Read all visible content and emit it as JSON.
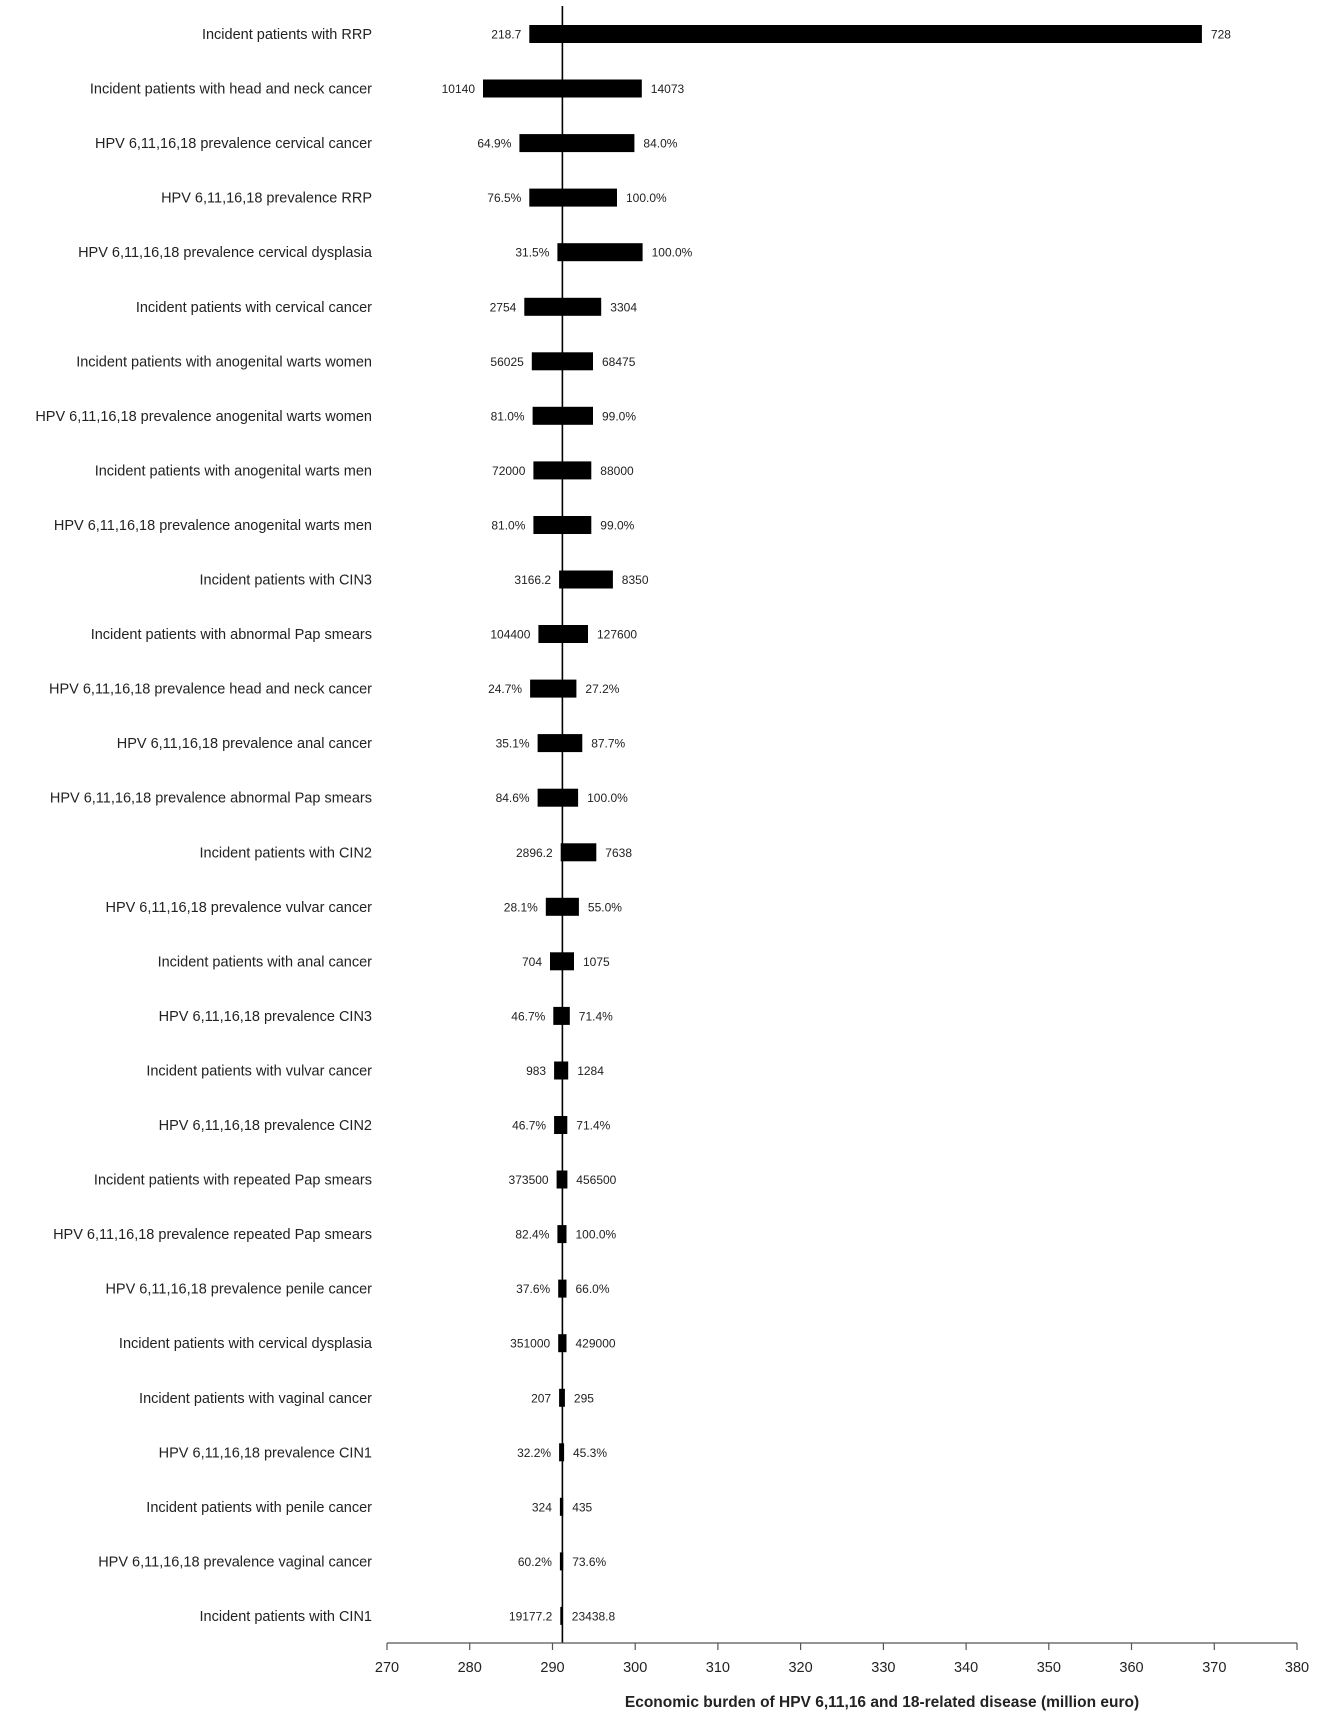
{
  "chart_data": {
    "type": "bar",
    "orientation": "horizontal",
    "subtype": "tornado",
    "title": "",
    "xlabel": "Economic burden of HPV 6,11,16 and 18-related disease (million euro)",
    "ylabel": "",
    "xlim": [
      270,
      380
    ],
    "xticks": [
      "270",
      "280",
      "290",
      "300",
      "310",
      "320",
      "330",
      "340",
      "350",
      "360",
      "370",
      "380"
    ],
    "base_value": 291.2,
    "bar_color": "#000000",
    "grid": false,
    "legend": "none",
    "bars": [
      {
        "category": "Incident patients with RRP",
        "low": 287.2,
        "high": 368.5,
        "low_label": "218.7",
        "high_label": "728"
      },
      {
        "category": "Incident patients with head and neck cancer",
        "low": 281.6,
        "high": 300.8,
        "low_label": "10140",
        "high_label": "14073"
      },
      {
        "category": "HPV 6,11,16,18 prevalence cervical cancer",
        "low": 286.0,
        "high": 299.9,
        "low_label": "64.9%",
        "high_label": "84.0%"
      },
      {
        "category": "HPV 6,11,16,18 prevalence RRP",
        "low": 287.2,
        "high": 297.8,
        "low_label": "76.5%",
        "high_label": "100.0%"
      },
      {
        "category": "HPV 6,11,16,18 prevalence cervical dysplasia",
        "low": 290.6,
        "high": 300.9,
        "low_label": "31.5%",
        "high_label": "100.0%"
      },
      {
        "category": "Incident patients with cervical cancer",
        "low": 286.6,
        "high": 295.9,
        "low_label": "2754",
        "high_label": "3304"
      },
      {
        "category": "Incident patients with anogenital warts women",
        "low": 287.5,
        "high": 294.9,
        "low_label": "56025",
        "high_label": "68475"
      },
      {
        "category": "HPV 6,11,16,18 prevalence anogenital warts women",
        "low": 287.6,
        "high": 294.9,
        "low_label": "81.0%",
        "high_label": "99.0%"
      },
      {
        "category": "Incident patients with anogenital warts men",
        "low": 287.7,
        "high": 294.7,
        "low_label": "72000",
        "high_label": "88000"
      },
      {
        "category": "HPV 6,11,16,18 prevalence anogenital warts men",
        "low": 287.7,
        "high": 294.7,
        "low_label": "81.0%",
        "high_label": "99.0%"
      },
      {
        "category": "Incident patients with CIN3",
        "low": 290.8,
        "high": 297.3,
        "low_label": "3166.2",
        "high_label": "8350"
      },
      {
        "category": "Incident patients with abnormal Pap smears",
        "low": 288.3,
        "high": 294.3,
        "low_label": "104400",
        "high_label": "127600"
      },
      {
        "category": "HPV 6,11,16,18 prevalence head and neck cancer",
        "low": 287.3,
        "high": 292.9,
        "low_label": "24.7%",
        "high_label": "27.2%"
      },
      {
        "category": "HPV 6,11,16,18 prevalence anal cancer",
        "low": 288.2,
        "high": 293.6,
        "low_label": "35.1%",
        "high_label": "87.7%"
      },
      {
        "category": "HPV 6,11,16,18 prevalence abnormal Pap smears",
        "low": 288.2,
        "high": 293.1,
        "low_label": "84.6%",
        "high_label": "100.0%"
      },
      {
        "category": "Incident patients with CIN2",
        "low": 291.0,
        "high": 295.3,
        "low_label": "2896.2",
        "high_label": "7638"
      },
      {
        "category": "HPV 6,11,16,18 prevalence vulvar cancer",
        "low": 289.2,
        "high": 293.2,
        "low_label": "28.1%",
        "high_label": "55.0%"
      },
      {
        "category": "Incident patients with anal cancer",
        "low": 289.7,
        "high": 292.6,
        "low_label": "704",
        "high_label": "1075"
      },
      {
        "category": "HPV 6,11,16,18 prevalence CIN3",
        "low": 290.1,
        "high": 292.1,
        "low_label": "46.7%",
        "high_label": "71.4%"
      },
      {
        "category": "Incident patients with vulvar cancer",
        "low": 290.2,
        "high": 291.9,
        "low_label": "983",
        "high_label": "1284"
      },
      {
        "category": "HPV 6,11,16,18 prevalence CIN2",
        "low": 290.2,
        "high": 291.8,
        "low_label": "46.7%",
        "high_label": "71.4%"
      },
      {
        "category": "Incident patients with repeated Pap smears",
        "low": 290.5,
        "high": 291.8,
        "low_label": "373500",
        "high_label": "456500"
      },
      {
        "category": "HPV 6,11,16,18 prevalence repeated Pap smears",
        "low": 290.6,
        "high": 291.7,
        "low_label": "82.4%",
        "high_label": "100.0%"
      },
      {
        "category": "HPV 6,11,16,18 prevalence penile cancer",
        "low": 290.7,
        "high": 291.7,
        "low_label": "37.6%",
        "high_label": "66.0%"
      },
      {
        "category": "Incident patients with cervical dysplasia",
        "low": 290.7,
        "high": 291.7,
        "low_label": "351000",
        "high_label": "429000"
      },
      {
        "category": "Incident patients with vaginal cancer",
        "low": 290.8,
        "high": 291.5,
        "low_label": "207",
        "high_label": "295"
      },
      {
        "category": "HPV 6,11,16,18 prevalence CIN1",
        "low": 290.8,
        "high": 291.4,
        "low_label": "32.2%",
        "high_label": "45.3%"
      },
      {
        "category": "Incident patients with penile cancer",
        "low": 290.9,
        "high": 291.3,
        "low_label": "324",
        "high_label": "435"
      },
      {
        "category": "HPV 6,11,16,18 prevalence vaginal cancer",
        "low": 290.9,
        "high": 291.3,
        "low_label": "60.2%",
        "high_label": "73.6%"
      },
      {
        "category": "Incident patients with CIN1",
        "low": 290.95,
        "high": 291.25,
        "low_label": "19177.2",
        "high_label": "23438.8"
      }
    ]
  }
}
